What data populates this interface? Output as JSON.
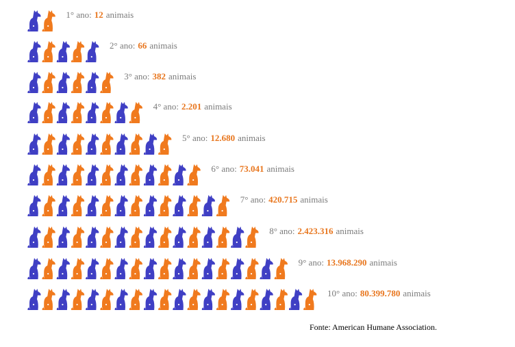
{
  "rows": [
    {
      "label": "1° ano:",
      "value": "12",
      "unit": "animais"
    },
    {
      "label": "2° ano:",
      "value": "66",
      "unit": "animais"
    },
    {
      "label": "3° ano:",
      "value": "382",
      "unit": "animais"
    },
    {
      "label": "4° ano:",
      "value": "2.201",
      "unit": "animais"
    },
    {
      "label": "5° ano:",
      "value": "12.680",
      "unit": "animais"
    },
    {
      "label": "6° ano:",
      "value": "73.041",
      "unit": "animais"
    },
    {
      "label": "7° ano:",
      "value": "420.715",
      "unit": "animais"
    },
    {
      "label": "8° ano:",
      "value": "2.423.316",
      "unit": "animais"
    },
    {
      "label": "9° ano:",
      "value": "13.968.290",
      "unit": "animais"
    },
    {
      "label": "10° ano:",
      "value": "80.399.780",
      "unit": "animais"
    }
  ],
  "source": "Fonte: American Humane Association."
}
